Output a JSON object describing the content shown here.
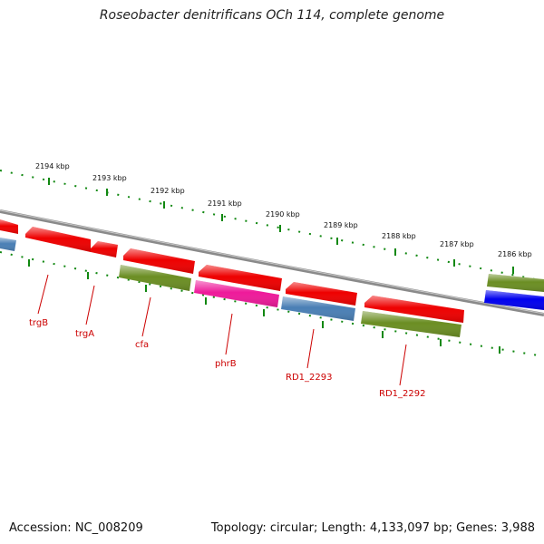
{
  "title": "Roseobacter denitrificans OCh 114, complete genome",
  "ruler": {
    "labels": [
      "2194 kbp",
      "2193 kbp",
      "2192 kbp",
      "2191 kbp",
      "2190 kbp",
      "2189 kbp",
      "2188 kbp",
      "2187 kbp",
      "2186 kbp"
    ]
  },
  "genes": {
    "labels": [
      "trgB",
      "trgA",
      "cfa",
      "phrB",
      "RD1_2293",
      "RD1_2292"
    ]
  },
  "colors": {
    "red": "#ee0000",
    "olive": "#6b8e23",
    "pink": "#ee1a9a",
    "steelblue": "#4a7fb5",
    "blue": "#0000ee",
    "tick": "#118811",
    "backbone": "#8a8a8a",
    "label": "#cc0000"
  },
  "footer": {
    "accession": "Accession: NC_008209",
    "summary": "Topology: circular; Length: 4,133,097 bp; Genes: 3,988"
  }
}
